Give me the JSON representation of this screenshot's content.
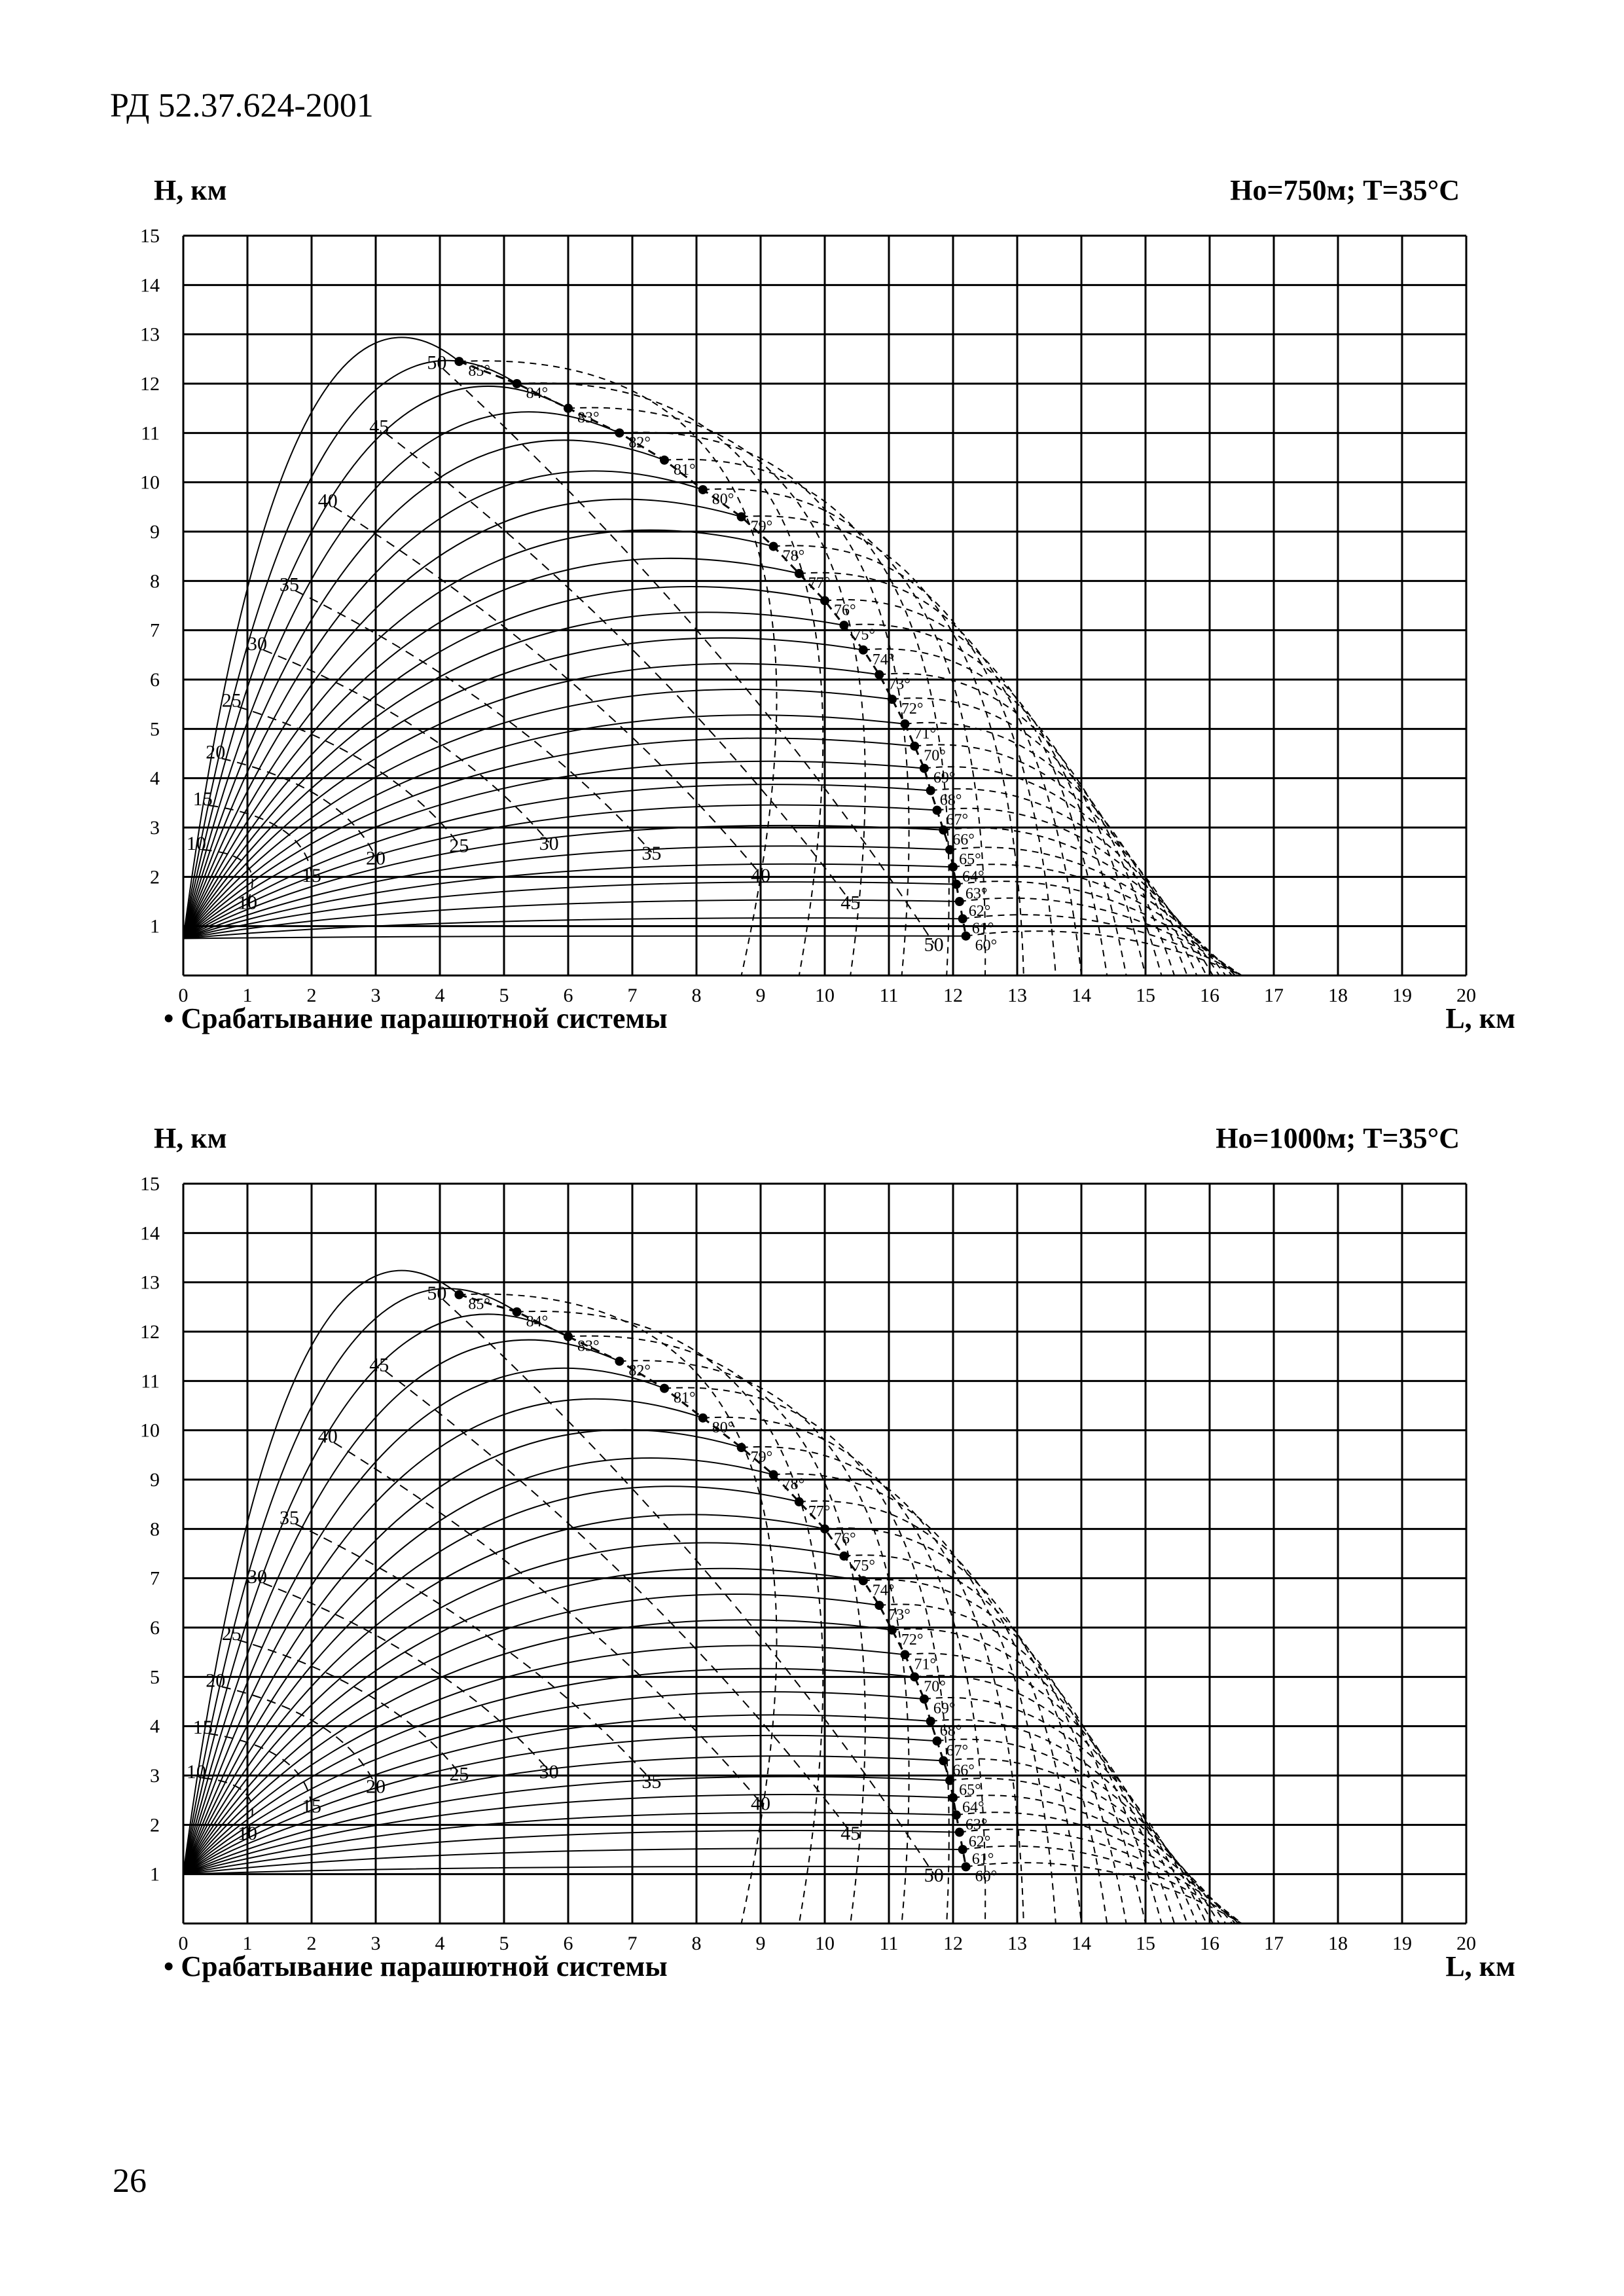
{
  "document": {
    "code": "РД 52.37.624-2001",
    "page_number": "26"
  },
  "chart_data": [
    {
      "type": "line",
      "title": "Ho=750м;   T=35°C",
      "ylabel": "H, км",
      "xlabel": "L, км",
      "legend_note": "• Срабатывание парашютной системы",
      "xlim": [
        0,
        20
      ],
      "ylim": [
        0,
        15
      ],
      "x_ticks": [
        "0",
        "1",
        "2",
        "3",
        "4",
        "5",
        "6",
        "7",
        "8",
        "9",
        "10",
        "11",
        "12",
        "13",
        "14",
        "15",
        "16",
        "17",
        "18",
        "19",
        "20"
      ],
      "y_ticks": [
        "1",
        "2",
        "3",
        "4",
        "5",
        "6",
        "7",
        "8",
        "9",
        "10",
        "11",
        "12",
        "13",
        "14",
        "15"
      ],
      "launch_height_km": 0.75,
      "grid": true,
      "parachute_points": [
        {
          "label": "85°",
          "x": 4.3,
          "y": 12.45
        },
        {
          "label": "84°",
          "x": 5.2,
          "y": 12.0
        },
        {
          "label": "83°",
          "x": 6.0,
          "y": 11.5
        },
        {
          "label": "82°",
          "x": 6.8,
          "y": 11.0
        },
        {
          "label": "81°",
          "x": 7.5,
          "y": 10.45
        },
        {
          "label": "80°",
          "x": 8.1,
          "y": 9.85
        },
        {
          "label": "79°",
          "x": 8.7,
          "y": 9.3
        },
        {
          "label": "78°",
          "x": 9.2,
          "y": 8.7
        },
        {
          "label": "77°",
          "x": 9.6,
          "y": 8.15
        },
        {
          "label": "76°",
          "x": 10.0,
          "y": 7.6
        },
        {
          "label": "75°",
          "x": 10.3,
          "y": 7.1
        },
        {
          "label": "74°",
          "x": 10.6,
          "y": 6.6
        },
        {
          "label": "73°",
          "x": 10.85,
          "y": 6.1
        },
        {
          "label": "72°",
          "x": 11.05,
          "y": 5.6
        },
        {
          "label": "71°",
          "x": 11.25,
          "y": 5.1
        },
        {
          "label": "70°",
          "x": 11.4,
          "y": 4.65
        },
        {
          "label": "69°",
          "x": 11.55,
          "y": 4.2
        },
        {
          "label": "68°",
          "x": 11.65,
          "y": 3.75
        },
        {
          "label": "67°",
          "x": 11.75,
          "y": 3.35
        },
        {
          "label": "66°",
          "x": 11.85,
          "y": 2.95
        },
        {
          "label": "65°",
          "x": 11.95,
          "y": 2.55
        },
        {
          "label": "64°",
          "x": 12.0,
          "y": 2.2
        },
        {
          "label": "63°",
          "x": 12.05,
          "y": 1.85
        },
        {
          "label": "62°",
          "x": 12.1,
          "y": 1.5
        },
        {
          "label": "61°",
          "x": 12.15,
          "y": 1.15
        },
        {
          "label": "60°",
          "x": 12.2,
          "y": 0.8
        }
      ],
      "time_labels_left": [
        {
          "label": "10",
          "x": 0.05,
          "y": 2.55
        },
        {
          "label": "15",
          "x": 0.15,
          "y": 3.45
        },
        {
          "label": "20",
          "x": 0.35,
          "y": 4.4
        },
        {
          "label": "25",
          "x": 0.6,
          "y": 5.45
        },
        {
          "label": "30",
          "x": 1.0,
          "y": 6.6
        },
        {
          "label": "35",
          "x": 1.5,
          "y": 7.8
        },
        {
          "label": "40",
          "x": 2.1,
          "y": 9.5
        },
        {
          "label": "45",
          "x": 2.9,
          "y": 11.0
        },
        {
          "label": "50",
          "x": 3.8,
          "y": 12.3
        }
      ],
      "time_labels_bottom": [
        {
          "label": "10",
          "x": 1.0,
          "y": 1.35
        },
        {
          "label": "15",
          "x": 2.0,
          "y": 1.9
        },
        {
          "label": "20",
          "x": 3.0,
          "y": 2.25
        },
        {
          "label": "25",
          "x": 4.3,
          "y": 2.5
        },
        {
          "label": "30",
          "x": 5.7,
          "y": 2.55
        },
        {
          "label": "35",
          "x": 7.3,
          "y": 2.35
        },
        {
          "label": "40",
          "x": 9.0,
          "y": 1.9
        },
        {
          "label": "45",
          "x": 10.4,
          "y": 1.35
        },
        {
          "label": "50",
          "x": 11.7,
          "y": 0.5
        }
      ]
    },
    {
      "type": "line",
      "title": "Ho=1000м;   T=35°C",
      "ylabel": "H, км",
      "xlabel": "L, км",
      "legend_note": "• Срабатывание парашютной системы",
      "xlim": [
        0,
        20
      ],
      "ylim": [
        0,
        15
      ],
      "x_ticks": [
        "0",
        "1",
        "2",
        "3",
        "4",
        "5",
        "6",
        "7",
        "8",
        "9",
        "10",
        "11",
        "12",
        "13",
        "14",
        "15",
        "16",
        "17",
        "18",
        "19",
        "20"
      ],
      "y_ticks": [
        "1",
        "2",
        "3",
        "4",
        "5",
        "6",
        "7",
        "8",
        "9",
        "10",
        "11",
        "12",
        "13",
        "14",
        "15"
      ],
      "launch_height_km": 1.0,
      "grid": true,
      "parachute_points": [
        {
          "label": "85°",
          "x": 4.3,
          "y": 12.75
        },
        {
          "label": "84°",
          "x": 5.2,
          "y": 12.4
        },
        {
          "label": "83°",
          "x": 6.0,
          "y": 11.9
        },
        {
          "label": "82°",
          "x": 6.8,
          "y": 11.4
        },
        {
          "label": "81°",
          "x": 7.5,
          "y": 10.85
        },
        {
          "label": "80°",
          "x": 8.1,
          "y": 10.25
        },
        {
          "label": "79°",
          "x": 8.7,
          "y": 9.65
        },
        {
          "label": "78°",
          "x": 9.2,
          "y": 9.1
        },
        {
          "label": "77°",
          "x": 9.6,
          "y": 8.55
        },
        {
          "label": "76°",
          "x": 10.0,
          "y": 8.0
        },
        {
          "label": "75°",
          "x": 10.3,
          "y": 7.45
        },
        {
          "label": "74°",
          "x": 10.6,
          "y": 6.95
        },
        {
          "label": "73°",
          "x": 10.85,
          "y": 6.45
        },
        {
          "label": "72°",
          "x": 11.05,
          "y": 5.95
        },
        {
          "label": "71°",
          "x": 11.25,
          "y": 5.45
        },
        {
          "label": "70°",
          "x": 11.4,
          "y": 5.0
        },
        {
          "label": "69°",
          "x": 11.55,
          "y": 4.55
        },
        {
          "label": "68°",
          "x": 11.65,
          "y": 4.1
        },
        {
          "label": "67°",
          "x": 11.75,
          "y": 3.7
        },
        {
          "label": "66°",
          "x": 11.85,
          "y": 3.3
        },
        {
          "label": "65°",
          "x": 11.95,
          "y": 2.9
        },
        {
          "label": "64°",
          "x": 12.0,
          "y": 2.55
        },
        {
          "label": "63°",
          "x": 12.05,
          "y": 2.2
        },
        {
          "label": "62°",
          "x": 12.1,
          "y": 1.85
        },
        {
          "label": "61°",
          "x": 12.15,
          "y": 1.5
        },
        {
          "label": "60°",
          "x": 12.2,
          "y": 1.15
        }
      ],
      "time_labels_left": [
        {
          "label": "10",
          "x": 0.05,
          "y": 2.95
        },
        {
          "label": "15",
          "x": 0.15,
          "y": 3.85
        },
        {
          "label": "20",
          "x": 0.35,
          "y": 4.8
        },
        {
          "label": "25",
          "x": 0.6,
          "y": 5.75
        },
        {
          "label": "30",
          "x": 1.0,
          "y": 6.9
        },
        {
          "label": "35",
          "x": 1.5,
          "y": 8.1
        },
        {
          "label": "40",
          "x": 2.1,
          "y": 9.75
        },
        {
          "label": "45",
          "x": 2.9,
          "y": 11.2
        },
        {
          "label": "50",
          "x": 3.8,
          "y": 12.65
        }
      ],
      "time_labels_bottom": [
        {
          "label": "10",
          "x": 1.0,
          "y": 1.7
        },
        {
          "label": "15",
          "x": 2.0,
          "y": 2.25
        },
        {
          "label": "20",
          "x": 3.0,
          "y": 2.65
        },
        {
          "label": "25",
          "x": 4.3,
          "y": 2.9
        },
        {
          "label": "30",
          "x": 5.7,
          "y": 2.95
        },
        {
          "label": "35",
          "x": 7.3,
          "y": 2.75
        },
        {
          "label": "40",
          "x": 9.0,
          "y": 2.3
        },
        {
          "label": "45",
          "x": 10.4,
          "y": 1.7
        },
        {
          "label": "50",
          "x": 11.7,
          "y": 0.85
        }
      ]
    }
  ]
}
